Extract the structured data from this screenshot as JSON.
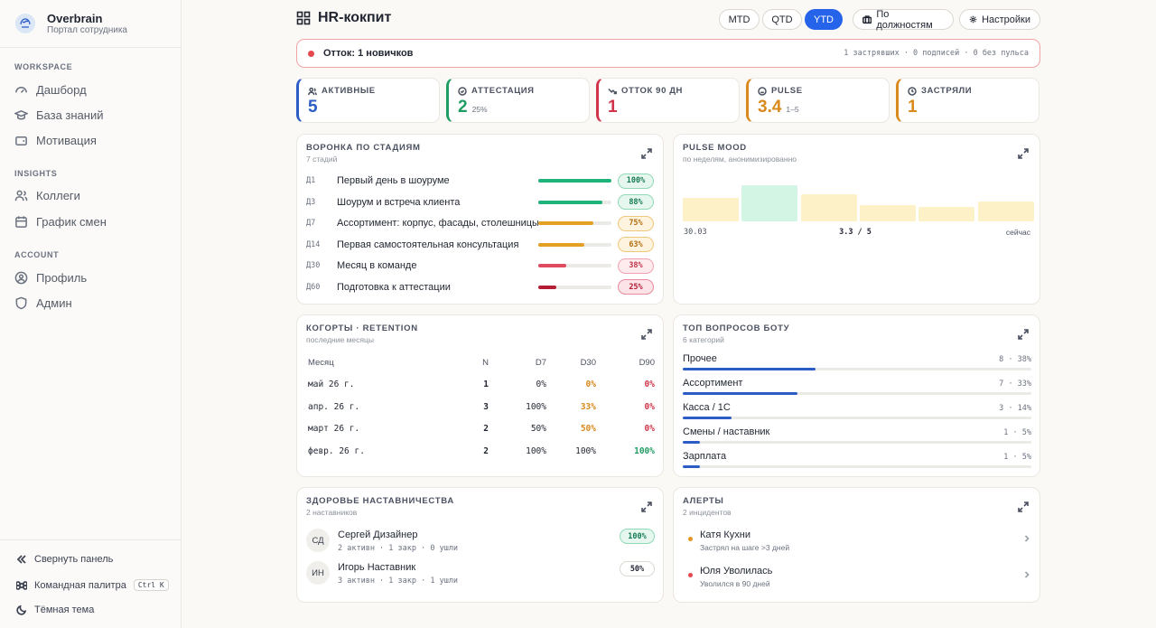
{
  "brand": {
    "title": "Overbrain",
    "subtitle": "Портал сотрудника"
  },
  "sidebar": {
    "sections": [
      {
        "label": "WORKSPACE",
        "items": [
          {
            "label": "Дашборд",
            "icon": "gauge-icon"
          },
          {
            "label": "База знаний",
            "icon": "graduation-cap-icon"
          },
          {
            "label": "Мотивация",
            "icon": "wallet-icon"
          }
        ]
      },
      {
        "label": "INSIGHTS",
        "items": [
          {
            "label": "Коллеги",
            "icon": "users-icon"
          },
          {
            "label": "График смен",
            "icon": "calendar-icon"
          }
        ]
      },
      {
        "label": "ACCOUNT",
        "items": [
          {
            "label": "Профиль",
            "icon": "user-circle-icon"
          },
          {
            "label": "Админ",
            "icon": "shield-icon"
          }
        ]
      }
    ],
    "bottom": {
      "collapse": "Свернуть панель",
      "palette": "Командная палитра",
      "palette_kbd": "Ctrl K",
      "theme": "Тёмная тема"
    }
  },
  "header": {
    "title": "HR-кокпит",
    "periods": [
      "MTD",
      "QTD",
      "YTD"
    ],
    "active_period": "YTD",
    "by_position": "По должностям",
    "settings": "Настройки"
  },
  "alert_bar": {
    "text": "Отток: 1 новичков",
    "meta": "1 застрявших · 0 подписей · 0 без пульса"
  },
  "kpis": [
    {
      "label": "АКТИВНЫЕ",
      "value": "5",
      "sub": "",
      "color": "#2c5cc5",
      "icon": "users-icon"
    },
    {
      "label": "АТТЕСТАЦИЯ",
      "value": "2",
      "sub": "25%",
      "color": "#1f9d63",
      "icon": "check-circle-icon"
    },
    {
      "label": "ОТТОК 90 ДН",
      "value": "1",
      "sub": "",
      "color": "#d1334a",
      "icon": "trend-down-icon"
    },
    {
      "label": "PULSE",
      "value": "3.4",
      "sub": "1–5",
      "color": "#d98a1c",
      "icon": "smile-icon"
    },
    {
      "label": "ЗАСТРЯЛИ",
      "value": "1",
      "sub": "",
      "color": "#d98a1c",
      "icon": "clock-icon"
    }
  ],
  "funnel": {
    "title": "ВОРОНКА ПО СТАДИЯМ",
    "subtitle": "7 стадий",
    "rows": [
      {
        "code": "Д1",
        "name": "Первый день в шоуруме",
        "value": 100,
        "label": "100%",
        "tone": "green"
      },
      {
        "code": "Д3",
        "name": "Шоурум и встреча клиента",
        "value": 88,
        "label": "88%",
        "tone": "green"
      },
      {
        "code": "Д7",
        "name": "Ассортимент: корпус, фасады, столешницы",
        "value": 75,
        "label": "75%",
        "tone": "amber"
      },
      {
        "code": "Д14",
        "name": "Первая самостоятельная консультация",
        "value": 63,
        "label": "63%",
        "tone": "amber"
      },
      {
        "code": "Д30",
        "name": "Месяц в команде",
        "value": 38,
        "label": "38%",
        "tone": "red"
      },
      {
        "code": "Д60",
        "name": "Подготовка к аттестации",
        "value": 25,
        "label": "25%",
        "tone": "darkred"
      }
    ]
  },
  "pulse": {
    "title": "PULSE MOOD",
    "subtitle": "по неделям, анонимизированно",
    "values": [
      3.3,
      4.0,
      3.5,
      2.9,
      2.8,
      3.1
    ],
    "highlight_index": 1,
    "axis_start": "30.03",
    "axis_mid": "3.3 / 5",
    "axis_end": "сейчас"
  },
  "cohorts": {
    "title": "КОГОРТЫ · RETENTION",
    "subtitle": "последние месяцы",
    "headers": {
      "month": "Месяц",
      "n": "N",
      "d7": "D7",
      "d30": "D30",
      "d90": "D90"
    },
    "rows": [
      {
        "month": "май 26 г.",
        "n": "1",
        "d7": "0%",
        "d30": "0%",
        "d90": "0%",
        "d30_tone": "amber",
        "d90_tone": "red"
      },
      {
        "month": "апр. 26 г.",
        "n": "3",
        "d7": "100%",
        "d30": "33%",
        "d90": "0%",
        "d30_tone": "amber",
        "d90_tone": "red"
      },
      {
        "month": "март 26 г.",
        "n": "2",
        "d7": "50%",
        "d30": "50%",
        "d90": "0%",
        "d30_tone": "amber",
        "d90_tone": "red"
      },
      {
        "month": "февр. 26 г.",
        "n": "2",
        "d7": "100%",
        "d30": "100%",
        "d90": "100%",
        "d30_tone": "plain",
        "d90_tone": "green"
      }
    ]
  },
  "questions": {
    "title": "ТОП ВОПРОСОВ БОТУ",
    "subtitle": "6 категорий",
    "rows": [
      {
        "name": "Прочее",
        "meta": "8 · 38%",
        "share": 0.38
      },
      {
        "name": "Ассортимент",
        "meta": "7 · 33%",
        "share": 0.33
      },
      {
        "name": "Касса / 1С",
        "meta": "3 · 14%",
        "share": 0.14
      },
      {
        "name": "Смены / наставник",
        "meta": "1 · 5%",
        "share": 0.05
      },
      {
        "name": "Зарплата",
        "meta": "1 · 5%",
        "share": 0.05
      }
    ]
  },
  "mentors": {
    "title": "ЗДОРОВЬЕ НАСТАВНИЧЕСТВА",
    "subtitle": "2 наставников",
    "rows": [
      {
        "initials": "СД",
        "name": "Сергей Дизайнер",
        "meta": "2 активн · 1 закр · 0 ушли",
        "score": "100%",
        "tone": "green"
      },
      {
        "initials": "ИН",
        "name": "Игорь Наставник",
        "meta": "3 активн · 1 закр · 1 ушли",
        "score": "50%",
        "tone": "plain"
      }
    ]
  },
  "alerts": {
    "title": "АЛЕРТЫ",
    "subtitle": "2 инцидентов",
    "rows": [
      {
        "name": "Катя Кухни",
        "meta": "Застрял на шаге >3 дней",
        "color": "#e8961e"
      },
      {
        "name": "Юля Уволилась",
        "meta": "Уволился в 90 дней",
        "color": "#e5484d"
      }
    ]
  },
  "colors": {
    "accent": "#2563eb",
    "green": "#1fb37a",
    "amber": "#e3a024",
    "red": "#e04a5f",
    "darkred": "#b51d36"
  }
}
